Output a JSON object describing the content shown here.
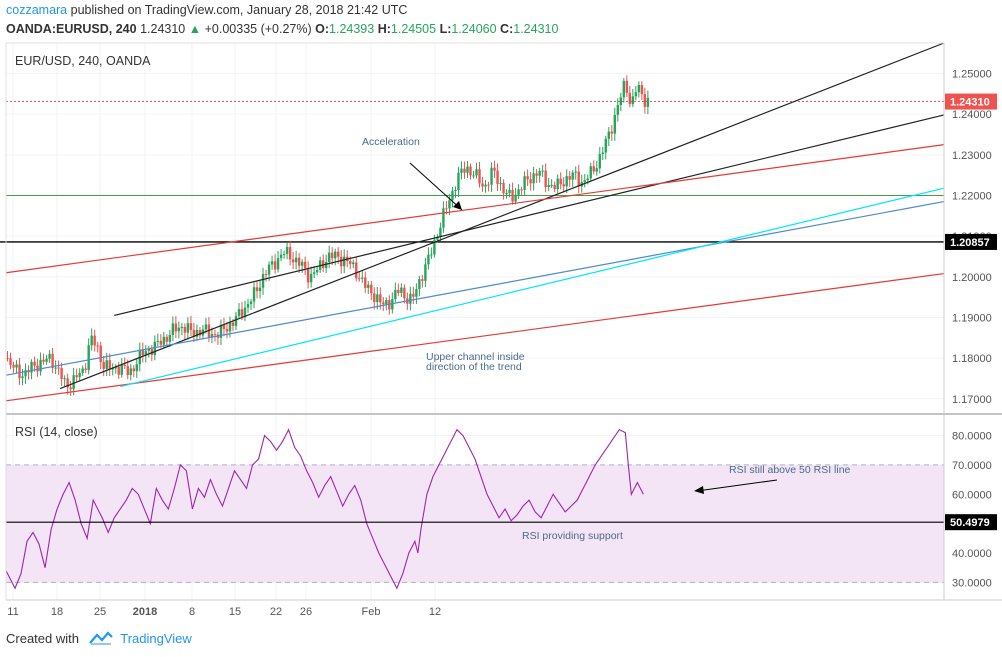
{
  "header": {
    "username": "cozzamara",
    "published_text": " published on TradingView.com, January 28, 2018 21:42 UTC",
    "symbol": "OANDA:EURUSD, 240",
    "last": "1.24310",
    "change_arrow": "▲",
    "change": "+0.00335 (+0.27%)",
    "o_label": "O:",
    "o_value": "1.24393",
    "h_label": "H:",
    "h_value": "1.24505",
    "l_label": "L:",
    "l_value": "1.24060",
    "c_label": "C:",
    "c_value": "1.24310"
  },
  "footer": {
    "created_with": "Created with",
    "brand": "TradingView"
  },
  "colors": {
    "up": "#26a65b",
    "down": "#ef5350",
    "rsi_line": "#9c27b0",
    "rsi_band": "#f3e5f5",
    "red_channel": "#e53935",
    "black_channel": "#222222",
    "cyan": "#00e5ff",
    "steel_blue": "#4f8ac9",
    "green_hline": "#43a047"
  },
  "chart_data": [
    {
      "type": "candlestick",
      "title": "EUR/USD, 240, OANDA",
      "y_ticks": [
        "1.17000",
        "1.18000",
        "1.19000",
        "1.20000",
        "1.21000",
        "1.22000",
        "1.23000",
        "1.24000",
        "1.25000"
      ],
      "ylim": [
        1.1665,
        1.2575
      ],
      "x_ticks": [
        "11",
        "18",
        "25",
        "2018",
        "8",
        "15",
        "22",
        "26",
        "Feb",
        "12"
      ],
      "last_price_label": "1.24310",
      "marker_price_label": "1.20857",
      "horizontal_line_price": 1.22,
      "annotations": [
        "Acceleration",
        "Upper channel inside direction of the trend"
      ],
      "price_path": [
        [
          0,
          1.18
        ],
        [
          3,
          1.177
        ],
        [
          6,
          1.176
        ],
        [
          9,
          1.178
        ],
        [
          12,
          1.179
        ],
        [
          15,
          1.18
        ],
        [
          18,
          1.176
        ],
        [
          20,
          1.173
        ],
        [
          23,
          1.175
        ],
        [
          26,
          1.177
        ],
        [
          28,
          1.185
        ],
        [
          30,
          1.183
        ],
        [
          32,
          1.179
        ],
        [
          35,
          1.177
        ],
        [
          38,
          1.178
        ],
        [
          41,
          1.176
        ],
        [
          44,
          1.18
        ],
        [
          47,
          1.182
        ],
        [
          50,
          1.183
        ],
        [
          53,
          1.185
        ],
        [
          56,
          1.187
        ],
        [
          59,
          1.188
        ],
        [
          62,
          1.186
        ],
        [
          65,
          1.187
        ],
        [
          68,
          1.186
        ],
        [
          71,
          1.186
        ],
        [
          74,
          1.188
        ],
        [
          77,
          1.19
        ],
        [
          80,
          1.193
        ],
        [
          83,
          1.196
        ],
        [
          86,
          1.201
        ],
        [
          89,
          1.203
        ],
        [
          92,
          1.206
        ],
        [
          95,
          1.205
        ],
        [
          98,
          1.203
        ],
        [
          101,
          1.2
        ],
        [
          104,
          1.202
        ],
        [
          107,
          1.205
        ],
        [
          110,
          1.205
        ],
        [
          113,
          1.204
        ],
        [
          116,
          1.202
        ],
        [
          119,
          1.198
        ],
        [
          122,
          1.196
        ],
        [
          125,
          1.193
        ],
        [
          128,
          1.194
        ],
        [
          131,
          1.197
        ],
        [
          133,
          1.195
        ],
        [
          135,
          1.194
        ],
        [
          138,
          1.2
        ],
        [
          141,
          1.205
        ],
        [
          144,
          1.212
        ],
        [
          147,
          1.218
        ],
        [
          150,
          1.224
        ],
        [
          153,
          1.227
        ],
        [
          156,
          1.225
        ],
        [
          159,
          1.222
        ],
        [
          162,
          1.226
        ],
        [
          165,
          1.222
        ],
        [
          168,
          1.219
        ],
        [
          171,
          1.222
        ],
        [
          174,
          1.224
        ],
        [
          177,
          1.226
        ],
        [
          180,
          1.223
        ],
        [
          183,
          1.222
        ],
        [
          186,
          1.224
        ],
        [
          189,
          1.225
        ],
        [
          192,
          1.223
        ],
        [
          195,
          1.226
        ],
        [
          198,
          1.23
        ],
        [
          201,
          1.236
        ],
        [
          204,
          1.243
        ],
        [
          206,
          1.248
        ],
        [
          207,
          1.245
        ],
        [
          208,
          1.242
        ],
        [
          210,
          1.247
        ],
        [
          212,
          1.244
        ],
        [
          214,
          1.243
        ]
      ],
      "trend_lines": [
        {
          "name": "black upper",
          "color": "black_channel",
          "from": [
            18,
            1.1725
          ],
          "to": [
            312,
            1.2575
          ]
        },
        {
          "name": "black lower",
          "color": "black_channel",
          "from": [
            36,
            1.1905
          ],
          "to": [
            312,
            1.2398
          ]
        },
        {
          "name": "red upper",
          "color": "red_channel",
          "from": [
            0,
            1.201
          ],
          "to": [
            312,
            1.2325
          ]
        },
        {
          "name": "red lower",
          "color": "red_channel",
          "from": [
            0,
            1.1695
          ],
          "to": [
            312,
            1.2008
          ]
        },
        {
          "name": "steel blue",
          "color": "steel_blue",
          "from": [
            0,
            1.1758
          ],
          "to": [
            312,
            1.2185
          ]
        },
        {
          "name": "cyan",
          "color": "cyan",
          "from": [
            38,
            1.173
          ],
          "to": [
            312,
            1.2218
          ]
        }
      ]
    },
    {
      "type": "line",
      "title": "RSI (14, close)",
      "y_ticks": [
        "30.0000",
        "40.0000",
        "50.0000",
        "60.0000",
        "70.0000",
        "80.0000"
      ],
      "ylim": [
        24,
        87
      ],
      "band": [
        30,
        70
      ],
      "support_level": 50.4979,
      "support_label": "50.4979",
      "annotations": [
        "RSI still above 50 RSI line",
        "RSI providing support"
      ],
      "values_path": [
        [
          0,
          34
        ],
        [
          3,
          28
        ],
        [
          5,
          33
        ],
        [
          7,
          44
        ],
        [
          9,
          47
        ],
        [
          11,
          43
        ],
        [
          13,
          35
        ],
        [
          15,
          48
        ],
        [
          17,
          55
        ],
        [
          19,
          60
        ],
        [
          21,
          64
        ],
        [
          23,
          58
        ],
        [
          25,
          50
        ],
        [
          27,
          45
        ],
        [
          29,
          58
        ],
        [
          32,
          52
        ],
        [
          34,
          47
        ],
        [
          36,
          52
        ],
        [
          38,
          55
        ],
        [
          40,
          58
        ],
        [
          42,
          62
        ],
        [
          44,
          60
        ],
        [
          46,
          55
        ],
        [
          48,
          50
        ],
        [
          50,
          62
        ],
        [
          52,
          58
        ],
        [
          54,
          55
        ],
        [
          56,
          62
        ],
        [
          58,
          70
        ],
        [
          60,
          68
        ],
        [
          62,
          55
        ],
        [
          64,
          62
        ],
        [
          66,
          59
        ],
        [
          68,
          65
        ],
        [
          70,
          60
        ],
        [
          72,
          56
        ],
        [
          74,
          62
        ],
        [
          76,
          68
        ],
        [
          78,
          65
        ],
        [
          80,
          62
        ],
        [
          82,
          70
        ],
        [
          84,
          72
        ],
        [
          86,
          80
        ],
        [
          88,
          78
        ],
        [
          90,
          75
        ],
        [
          92,
          78
        ],
        [
          94,
          82
        ],
        [
          96,
          76
        ],
        [
          98,
          73
        ],
        [
          100,
          68
        ],
        [
          102,
          64
        ],
        [
          104,
          59
        ],
        [
          106,
          63
        ],
        [
          108,
          66
        ],
        [
          110,
          61
        ],
        [
          112,
          56
        ],
        [
          114,
          60
        ],
        [
          116,
          63
        ],
        [
          118,
          58
        ],
        [
          120,
          50
        ],
        [
          122,
          45
        ],
        [
          124,
          40
        ],
        [
          126,
          36
        ],
        [
          128,
          32
        ],
        [
          130,
          28
        ],
        [
          132,
          33
        ],
        [
          134,
          40
        ],
        [
          136,
          44
        ],
        [
          137,
          40
        ],
        [
          138,
          48
        ],
        [
          140,
          60
        ],
        [
          142,
          66
        ],
        [
          144,
          70
        ],
        [
          146,
          74
        ],
        [
          148,
          78
        ],
        [
          150,
          82
        ],
        [
          152,
          80
        ],
        [
          154,
          76
        ],
        [
          156,
          72
        ],
        [
          158,
          66
        ],
        [
          160,
          60
        ],
        [
          162,
          56
        ],
        [
          164,
          52
        ],
        [
          166,
          55
        ],
        [
          168,
          51
        ],
        [
          170,
          53
        ],
        [
          172,
          56
        ],
        [
          174,
          58
        ],
        [
          176,
          54
        ],
        [
          178,
          52
        ],
        [
          180,
          56
        ],
        [
          182,
          60
        ],
        [
          184,
          57
        ],
        [
          186,
          54
        ],
        [
          188,
          56
        ],
        [
          190,
          58
        ],
        [
          192,
          62
        ],
        [
          194,
          66
        ],
        [
          196,
          70
        ],
        [
          198,
          73
        ],
        [
          200,
          76
        ],
        [
          202,
          79
        ],
        [
          204,
          82
        ],
        [
          206,
          81
        ],
        [
          207,
          70
        ],
        [
          208,
          60
        ],
        [
          209,
          62
        ],
        [
          210,
          64
        ],
        [
          211,
          62
        ],
        [
          212,
          60
        ]
      ]
    }
  ]
}
